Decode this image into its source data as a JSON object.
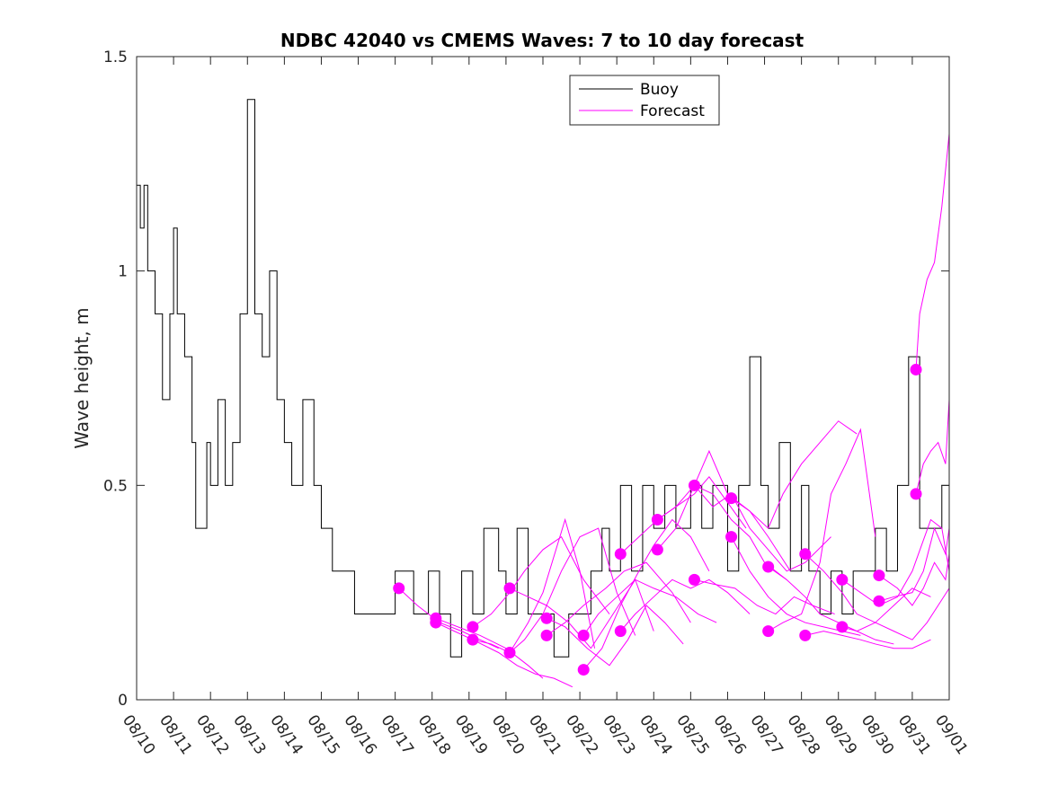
{
  "chart_data": {
    "type": "line",
    "title": "NDBC 42040 vs CMEMS Waves: 7 to 10 day forecast",
    "xlabel": "",
    "ylabel": "Wave height, m",
    "xlim_days": [
      0,
      22
    ],
    "ylim": [
      0,
      1.5
    ],
    "yticks": [
      0,
      0.5,
      1,
      1.5
    ],
    "ytick_labels": [
      "0",
      "0.5",
      "1",
      "1.5"
    ],
    "xtick_labels": [
      "08/10",
      "08/11",
      "08/12",
      "08/13",
      "08/14",
      "08/15",
      "08/16",
      "08/17",
      "08/18",
      "08/19",
      "08/20",
      "08/21",
      "08/22",
      "08/23",
      "08/24",
      "08/25",
      "08/26",
      "08/27",
      "08/28",
      "08/29",
      "08/30",
      "08/31",
      "09/01"
    ],
    "legend": {
      "position": "top-center",
      "entries": [
        {
          "label": "Buoy",
          "color": "#000000"
        },
        {
          "label": "Forecast",
          "color": "#ff00ff"
        }
      ]
    },
    "colors": {
      "buoy": "#000000",
      "forecast": "#ff00ff",
      "axis": "#262626"
    },
    "series": [
      {
        "name": "Buoy",
        "x": [
          0,
          0.1,
          0.2,
          0.3,
          0.5,
          0.7,
          0.9,
          1.0,
          1.1,
          1.3,
          1.5,
          1.6,
          1.7,
          1.9,
          2.0,
          2.2,
          2.4,
          2.6,
          2.8,
          3.0,
          3.2,
          3.4,
          3.6,
          3.8,
          4.0,
          4.2,
          4.5,
          4.8,
          5.0,
          5.3,
          5.6,
          5.9,
          6.0,
          6.3,
          6.6,
          7.0,
          7.5,
          7.9,
          8.2,
          8.5,
          8.8,
          9.1,
          9.4,
          9.8,
          10.0,
          10.3,
          10.6,
          11.0,
          11.3,
          11.7,
          12.0,
          12.3,
          12.6,
          12.8,
          13.1,
          13.4,
          13.7,
          14.0,
          14.3,
          14.6,
          15.0,
          15.3,
          15.6,
          16.0,
          16.3,
          16.6,
          16.9,
          17.1,
          17.4,
          17.7,
          18.0,
          18.2,
          18.5,
          18.8,
          19.1,
          19.4,
          19.7,
          20.0,
          20.3,
          20.6,
          20.9,
          21.2,
          21.5,
          21.8,
          22.0
        ],
        "values": [
          1.2,
          1.1,
          1.2,
          1.0,
          0.9,
          0.7,
          0.9,
          1.1,
          0.9,
          0.8,
          0.6,
          0.4,
          0.4,
          0.6,
          0.5,
          0.7,
          0.5,
          0.6,
          0.9,
          1.4,
          0.9,
          0.8,
          1.0,
          0.7,
          0.6,
          0.5,
          0.7,
          0.5,
          0.4,
          0.3,
          0.3,
          0.2,
          0.2,
          0.2,
          0.2,
          0.3,
          0.2,
          0.3,
          0.2,
          0.1,
          0.3,
          0.2,
          0.4,
          0.3,
          0.2,
          0.4,
          0.2,
          0.2,
          0.1,
          0.2,
          0.2,
          0.3,
          0.4,
          0.3,
          0.5,
          0.3,
          0.5,
          0.4,
          0.5,
          0.4,
          0.5,
          0.4,
          0.5,
          0.3,
          0.5,
          0.8,
          0.5,
          0.4,
          0.6,
          0.3,
          0.5,
          0.3,
          0.2,
          0.3,
          0.2,
          0.3,
          0.3,
          0.4,
          0.3,
          0.5,
          0.8,
          0.4,
          0.4,
          0.5,
          0.3
        ]
      },
      {
        "name": "Forecast",
        "runs": [
          {
            "x": [
              7.1,
              7.6,
              8.2,
              8.8,
              9.3,
              9.8
            ],
            "values": [
              0.26,
              0.22,
              0.18,
              0.16,
              0.14,
              0.12
            ]
          },
          {
            "x": [
              8.1,
              8.7,
              9.3,
              10.0,
              10.6,
              11.0
            ],
            "values": [
              0.19,
              0.17,
              0.15,
              0.12,
              0.08,
              0.05
            ]
          },
          {
            "x": [
              8.1,
              8.6,
              9.1,
              9.8,
              10.3,
              10.8,
              11.3,
              11.8
            ],
            "values": [
              0.18,
              0.16,
              0.14,
              0.11,
              0.08,
              0.06,
              0.05,
              0.03
            ]
          },
          {
            "x": [
              9.1,
              9.6,
              10.1,
              10.6,
              11.0,
              11.6,
              12.0,
              12.4
            ],
            "values": [
              0.14,
              0.13,
              0.11,
              0.18,
              0.25,
              0.42,
              0.3,
              0.12
            ]
          },
          {
            "x": [
              9.1,
              9.6,
              10.1,
              10.5,
              11.0,
              11.5,
              12.1,
              12.8
            ],
            "values": [
              0.17,
              0.2,
              0.25,
              0.3,
              0.35,
              0.38,
              0.28,
              0.2
            ]
          },
          {
            "x": [
              10.1,
              10.5,
              11.0,
              11.5,
              12.0,
              12.5,
              13.0,
              13.5
            ],
            "values": [
              0.11,
              0.14,
              0.2,
              0.3,
              0.38,
              0.4,
              0.25,
              0.15
            ]
          },
          {
            "x": [
              10.1,
              10.6,
              11.1,
              11.7,
              12.3,
              12.9,
              13.5,
              14.0
            ],
            "values": [
              0.26,
              0.24,
              0.22,
              0.18,
              0.12,
              0.2,
              0.28,
              0.16
            ]
          },
          {
            "x": [
              11.1,
              11.6,
              12.1,
              12.7,
              13.2,
              13.8,
              14.5,
              15.0
            ],
            "values": [
              0.15,
              0.18,
              0.22,
              0.26,
              0.3,
              0.32,
              0.25,
              0.18
            ]
          },
          {
            "x": [
              11.1,
              11.6,
              12.2,
              12.8,
              13.3,
              13.8,
              14.3,
              14.8
            ],
            "values": [
              0.19,
              0.17,
              0.12,
              0.08,
              0.14,
              0.22,
              0.18,
              0.13
            ]
          },
          {
            "x": [
              12.1,
              12.6,
              13.1,
              13.6,
              14.0,
              14.5,
              15.0,
              15.5
            ],
            "values": [
              0.07,
              0.12,
              0.22,
              0.3,
              0.36,
              0.42,
              0.38,
              0.3
            ]
          },
          {
            "x": [
              12.1,
              12.5,
              13.0,
              13.5,
              14.0,
              14.6,
              15.2,
              15.7
            ],
            "values": [
              0.15,
              0.2,
              0.24,
              0.28,
              0.26,
              0.24,
              0.2,
              0.18
            ]
          },
          {
            "x": [
              13.1,
              13.6,
              14.1,
              14.6,
              15.1,
              15.5,
              16.0,
              16.5
            ],
            "values": [
              0.34,
              0.38,
              0.42,
              0.45,
              0.48,
              0.52,
              0.46,
              0.4
            ]
          },
          {
            "x": [
              13.1,
              13.5,
              14.0,
              14.5,
              15.0,
              15.5,
              16.0,
              16.6
            ],
            "values": [
              0.16,
              0.2,
              0.24,
              0.28,
              0.26,
              0.28,
              0.25,
              0.2
            ]
          },
          {
            "x": [
              14.1,
              14.6,
              15.1,
              15.6,
              16.1,
              16.6,
              17.0,
              17.6
            ],
            "values": [
              0.42,
              0.45,
              0.5,
              0.48,
              0.42,
              0.38,
              0.32,
              0.28
            ]
          },
          {
            "x": [
              14.1,
              14.6,
              15.1,
              15.5,
              16.0,
              16.6,
              17.1,
              17.7
            ],
            "values": [
              0.35,
              0.4,
              0.5,
              0.58,
              0.48,
              0.44,
              0.38,
              0.3
            ]
          },
          {
            "x": [
              15.1,
              15.6,
              16.1,
              16.6,
              17.1,
              17.6,
              18.1,
              18.8
            ],
            "values": [
              0.5,
              0.45,
              0.48,
              0.4,
              0.35,
              0.3,
              0.32,
              0.38
            ]
          },
          {
            "x": [
              15.1,
              15.6,
              16.2,
              16.8,
              17.3,
              17.8,
              18.3,
              18.9
            ],
            "values": [
              0.28,
              0.27,
              0.26,
              0.22,
              0.2,
              0.24,
              0.22,
              0.2
            ]
          },
          {
            "x": [
              16.1,
              16.6,
              17.1,
              17.5,
              18.0,
              18.5,
              19.0,
              19.5
            ],
            "values": [
              0.47,
              0.44,
              0.4,
              0.48,
              0.55,
              0.6,
              0.65,
              0.62
            ]
          },
          {
            "x": [
              16.1,
              16.6,
              17.1,
              17.6,
              18.1,
              18.6,
              19.1,
              19.6
            ],
            "values": [
              0.38,
              0.3,
              0.24,
              0.2,
              0.18,
              0.17,
              0.16,
              0.15
            ]
          },
          {
            "x": [
              17.1,
              17.6,
              18.1,
              18.5,
              19.0,
              19.5,
              20.0,
              20.5
            ],
            "values": [
              0.31,
              0.28,
              0.24,
              0.2,
              0.18,
              0.16,
              0.14,
              0.13
            ]
          },
          {
            "x": [
              17.1,
              17.5,
              18.0,
              18.5,
              18.8,
              19.2,
              19.6,
              20.0
            ],
            "values": [
              0.16,
              0.18,
              0.2,
              0.32,
              0.48,
              0.55,
              0.63,
              0.38
            ]
          },
          {
            "x": [
              18.1,
              18.6,
              19.1,
              19.6,
              20.0,
              20.5,
              21.0,
              21.5
            ],
            "values": [
              0.15,
              0.16,
              0.15,
              0.14,
              0.13,
              0.12,
              0.12,
              0.14
            ]
          },
          {
            "x": [
              18.1,
              18.6,
              19.1,
              19.5,
              20.0,
              20.5,
              21.0,
              21.5
            ],
            "values": [
              0.34,
              0.3,
              0.25,
              0.2,
              0.18,
              0.22,
              0.26,
              0.24
            ]
          },
          {
            "x": [
              19.1,
              19.6,
              20.1,
              20.6,
              21.0,
              21.5,
              21.8,
              22.0
            ],
            "values": [
              0.28,
              0.25,
              0.22,
              0.24,
              0.3,
              0.42,
              0.4,
              0.3
            ]
          },
          {
            "x": [
              19.1,
              19.5,
              20.0,
              20.5,
              21.0,
              21.4,
              21.7,
              22.0
            ],
            "values": [
              0.17,
              0.16,
              0.18,
              0.16,
              0.14,
              0.18,
              0.22,
              0.26
            ]
          },
          {
            "x": [
              20.1,
              20.6,
              21.0,
              21.3,
              21.6,
              21.9,
              22.0
            ],
            "values": [
              0.29,
              0.26,
              0.22,
              0.26,
              0.32,
              0.28,
              0.34
            ]
          },
          {
            "x": [
              20.1,
              20.5,
              21.0,
              21.3,
              21.6,
              21.9,
              22.0
            ],
            "values": [
              0.23,
              0.24,
              0.25,
              0.3,
              0.4,
              0.34,
              0.4
            ]
          },
          {
            "x": [
              21.1,
              21.3,
              21.5,
              21.7,
              21.9,
              22.0
            ],
            "values": [
              0.48,
              0.55,
              0.58,
              0.6,
              0.55,
              0.7
            ]
          },
          {
            "x": [
              21.1,
              21.2,
              21.4,
              21.6,
              21.8,
              22.0
            ],
            "values": [
              0.77,
              0.9,
              0.98,
              1.02,
              1.15,
              1.32
            ]
          }
        ]
      }
    ]
  }
}
